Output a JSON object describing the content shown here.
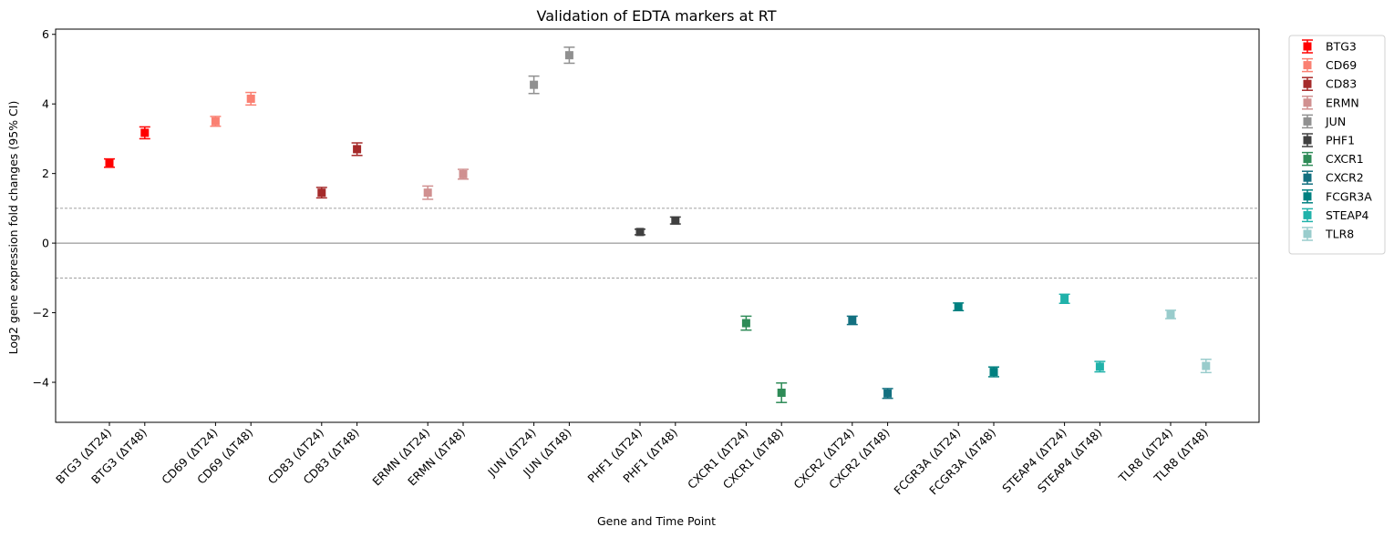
{
  "chart_data": {
    "type": "scatter",
    "title": "Validation of EDTA markers at RT",
    "xlabel": "Gene and Time Point",
    "ylabel": "Log2 gene expression fold changes (95% CI)",
    "ylim": [
      -5.15,
      6.15
    ],
    "yticks": [
      -4,
      -2,
      0,
      2,
      4,
      6
    ],
    "reference_lines": [
      {
        "y": 1,
        "style": "dashed"
      },
      {
        "y": 0,
        "style": "solid"
      },
      {
        "y": -1,
        "style": "dashed"
      }
    ],
    "grid": false,
    "legend": "outside-top-right",
    "categories": [
      "BTG3 (ΔT24)",
      "BTG3 (ΔT48)",
      "CD69 (ΔT24)",
      "CD69 (ΔT48)",
      "CD83 (ΔT24)",
      "CD83 (ΔT48)",
      "ERMN (ΔT24)",
      "ERMN (ΔT48)",
      "JUN (ΔT24)",
      "JUN (ΔT48)",
      "PHF1 (ΔT24)",
      "PHF1 (ΔT48)",
      "CXCR1 (ΔT24)",
      "CXCR1 (ΔT48)",
      "CXCR2 (ΔT24)",
      "CXCR2 (ΔT48)",
      "FCGR3A (ΔT24)",
      "FCGR3A (ΔT48)",
      "STEAP4 (ΔT24)",
      "STEAP4 (ΔT48)",
      "TLR8 (ΔT24)",
      "TLR8 (ΔT48)"
    ],
    "series": [
      {
        "name": "BTG3",
        "color": "#ff0000",
        "points": [
          {
            "x": "BTG3 (ΔT24)",
            "y": 2.3,
            "lo": 2.18,
            "hi": 2.42
          },
          {
            "x": "BTG3 (ΔT48)",
            "y": 3.17,
            "lo": 3.0,
            "hi": 3.34
          }
        ]
      },
      {
        "name": "CD69",
        "color": "#fa8072",
        "points": [
          {
            "x": "CD69 (ΔT24)",
            "y": 3.5,
            "lo": 3.36,
            "hi": 3.64
          },
          {
            "x": "CD69 (ΔT48)",
            "y": 4.15,
            "lo": 3.97,
            "hi": 4.33
          }
        ]
      },
      {
        "name": "CD83",
        "color": "#a52a2a",
        "points": [
          {
            "x": "CD83 (ΔT24)",
            "y": 1.45,
            "lo": 1.3,
            "hi": 1.6
          },
          {
            "x": "CD83 (ΔT48)",
            "y": 2.7,
            "lo": 2.52,
            "hi": 2.88
          }
        ]
      },
      {
        "name": "ERMN",
        "color": "#d09090",
        "points": [
          {
            "x": "ERMN (ΔT24)",
            "y": 1.45,
            "lo": 1.26,
            "hi": 1.64
          },
          {
            "x": "ERMN (ΔT48)",
            "y": 1.98,
            "lo": 1.84,
            "hi": 2.12
          }
        ]
      },
      {
        "name": "JUN",
        "color": "#909090",
        "points": [
          {
            "x": "JUN (ΔT24)",
            "y": 4.55,
            "lo": 4.3,
            "hi": 4.8
          },
          {
            "x": "JUN (ΔT48)",
            "y": 5.4,
            "lo": 5.17,
            "hi": 5.63
          }
        ]
      },
      {
        "name": "PHF1",
        "color": "#404040",
        "points": [
          {
            "x": "PHF1 (ΔT24)",
            "y": 0.32,
            "lo": 0.24,
            "hi": 0.4
          },
          {
            "x": "PHF1 (ΔT48)",
            "y": 0.65,
            "lo": 0.55,
            "hi": 0.75
          }
        ]
      },
      {
        "name": "CXCR1",
        "color": "#2e8b57",
        "points": [
          {
            "x": "CXCR1 (ΔT24)",
            "y": -2.3,
            "lo": -2.5,
            "hi": -2.1
          },
          {
            "x": "CXCR1 (ΔT48)",
            "y": -4.3,
            "lo": -4.58,
            "hi": -4.02
          }
        ]
      },
      {
        "name": "CXCR2",
        "color": "#137080",
        "points": [
          {
            "x": "CXCR2 (ΔT24)",
            "y": -2.22,
            "lo": -2.34,
            "hi": -2.1
          },
          {
            "x": "CXCR2 (ΔT48)",
            "y": -4.32,
            "lo": -4.46,
            "hi": -4.18
          }
        ]
      },
      {
        "name": "FCGR3A",
        "color": "#008080",
        "points": [
          {
            "x": "FCGR3A (ΔT24)",
            "y": -1.83,
            "lo": -1.94,
            "hi": -1.72
          },
          {
            "x": "FCGR3A (ΔT48)",
            "y": -3.7,
            "lo": -3.84,
            "hi": -3.56
          }
        ]
      },
      {
        "name": "STEAP4",
        "color": "#20b2aa",
        "points": [
          {
            "x": "STEAP4 (ΔT24)",
            "y": -1.6,
            "lo": -1.73,
            "hi": -1.47
          },
          {
            "x": "STEAP4 (ΔT48)",
            "y": -3.55,
            "lo": -3.7,
            "hi": -3.4
          }
        ]
      },
      {
        "name": "TLR8",
        "color": "#99cccc",
        "points": [
          {
            "x": "TLR8 (ΔT24)",
            "y": -2.05,
            "lo": -2.17,
            "hi": -1.93
          },
          {
            "x": "TLR8 (ΔT48)",
            "y": -3.53,
            "lo": -3.72,
            "hi": -3.34
          }
        ]
      }
    ]
  }
}
